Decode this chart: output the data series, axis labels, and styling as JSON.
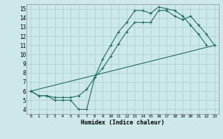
{
  "xlabel": "Humidex (Indice chaleur)",
  "background_color": "#cce8e8",
  "grid_color": "#afd0d0",
  "line_color": "#1a6b5a",
  "xlim": [
    -0.5,
    23.5
  ],
  "ylim": [
    3.5,
    15.5
  ],
  "xticks": [
    0,
    1,
    2,
    3,
    4,
    5,
    6,
    7,
    8,
    9,
    10,
    11,
    12,
    13,
    14,
    15,
    16,
    17,
    18,
    19,
    20,
    21,
    22,
    23
  ],
  "yticks": [
    4,
    5,
    6,
    7,
    8,
    9,
    10,
    11,
    12,
    13,
    14,
    15
  ],
  "line1_x": [
    0,
    1,
    2,
    3,
    4,
    5,
    6,
    7,
    8,
    9,
    10,
    11,
    12,
    13,
    14,
    15,
    16,
    17,
    18,
    19,
    20,
    21,
    22
  ],
  "line1_y": [
    6.0,
    5.5,
    5.5,
    5.0,
    5.0,
    5.0,
    4.0,
    4.0,
    7.5,
    9.5,
    11.0,
    12.5,
    13.5,
    14.8,
    14.8,
    14.5,
    15.2,
    15.0,
    14.8,
    14.2,
    13.2,
    12.2,
    11.0
  ],
  "line2_x": [
    0,
    1,
    2,
    3,
    4,
    5,
    6,
    7,
    8,
    9,
    10,
    11,
    12,
    13,
    14,
    15,
    16,
    17,
    18,
    19,
    20,
    21,
    22,
    23
  ],
  "line2_y": [
    6.0,
    5.5,
    5.5,
    5.3,
    5.3,
    5.3,
    5.5,
    6.2,
    7.5,
    8.5,
    9.8,
    11.2,
    12.5,
    13.5,
    13.5,
    13.5,
    14.8,
    14.8,
    14.2,
    13.8,
    14.2,
    13.2,
    12.2,
    11.0
  ],
  "line3_x": [
    0,
    23
  ],
  "line3_y": [
    6.0,
    11.0
  ]
}
